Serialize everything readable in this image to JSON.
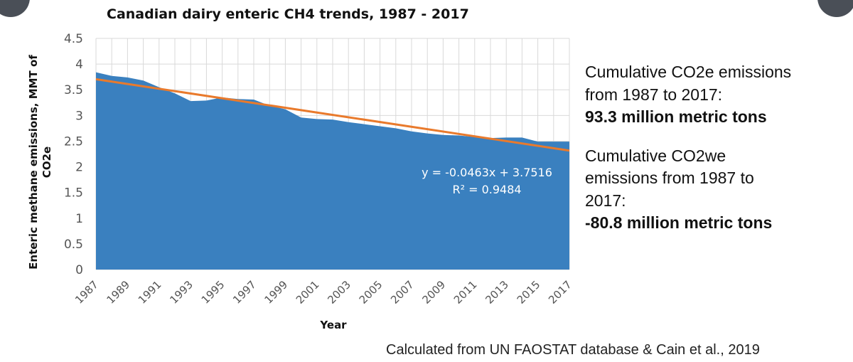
{
  "chart_data": {
    "type": "area",
    "title": "Canadian dairy enteric CH4 trends, 1987 - 2017",
    "xlabel": "Year",
    "ylabel_line1": "Enteric methane emissions, MMT of",
    "ylabel_line2": "CO2e",
    "ylim": [
      0,
      4.5
    ],
    "yticks": [
      "0",
      "0.5",
      "1",
      "1.5",
      "2",
      "2.5",
      "3",
      "3.5",
      "4",
      "4.5"
    ],
    "xtick_labels": [
      "1987",
      "1989",
      "1991",
      "1993",
      "1995",
      "1997",
      "1999",
      "2001",
      "2003",
      "2005",
      "2007",
      "2009",
      "2011",
      "2013",
      "2015",
      "2017"
    ],
    "x": [
      1987,
      1988,
      1989,
      1990,
      1991,
      1992,
      1993,
      1994,
      1995,
      1996,
      1997,
      1998,
      1999,
      2000,
      2001,
      2002,
      2003,
      2004,
      2005,
      2006,
      2007,
      2008,
      2009,
      2010,
      2011,
      2012,
      2013,
      2014,
      2015,
      2016,
      2017
    ],
    "series": [
      {
        "name": "Enteric methane emissions",
        "color": "#3a80bf",
        "values": [
          3.84,
          3.77,
          3.74,
          3.68,
          3.55,
          3.43,
          3.28,
          3.29,
          3.35,
          3.32,
          3.31,
          3.19,
          3.12,
          2.96,
          2.93,
          2.92,
          2.87,
          2.83,
          2.79,
          2.75,
          2.69,
          2.65,
          2.62,
          2.61,
          2.58,
          2.56,
          2.57,
          2.57,
          2.49,
          2.49,
          2.49
        ]
      }
    ],
    "trendline": {
      "color": "#e97a2c",
      "slope": -0.0463,
      "intercept": 3.7516,
      "equation": "y = -0.0463x + 3.7516",
      "r_squared": "R² = 0.9484"
    }
  },
  "notes": {
    "co2e_line1": "Cumulative CO2e emissions",
    "co2e_line2": "from 1987 to 2017:",
    "co2e_value": "93.3 million metric tons",
    "co2we_line1": "Cumulative CO2we",
    "co2we_line2": "emissions from 1987 to",
    "co2we_line3": "2017:",
    "co2we_value": "-80.8 million metric tons"
  },
  "source": "Calculated from UN FAOSTAT database & Cain et al., 2019"
}
